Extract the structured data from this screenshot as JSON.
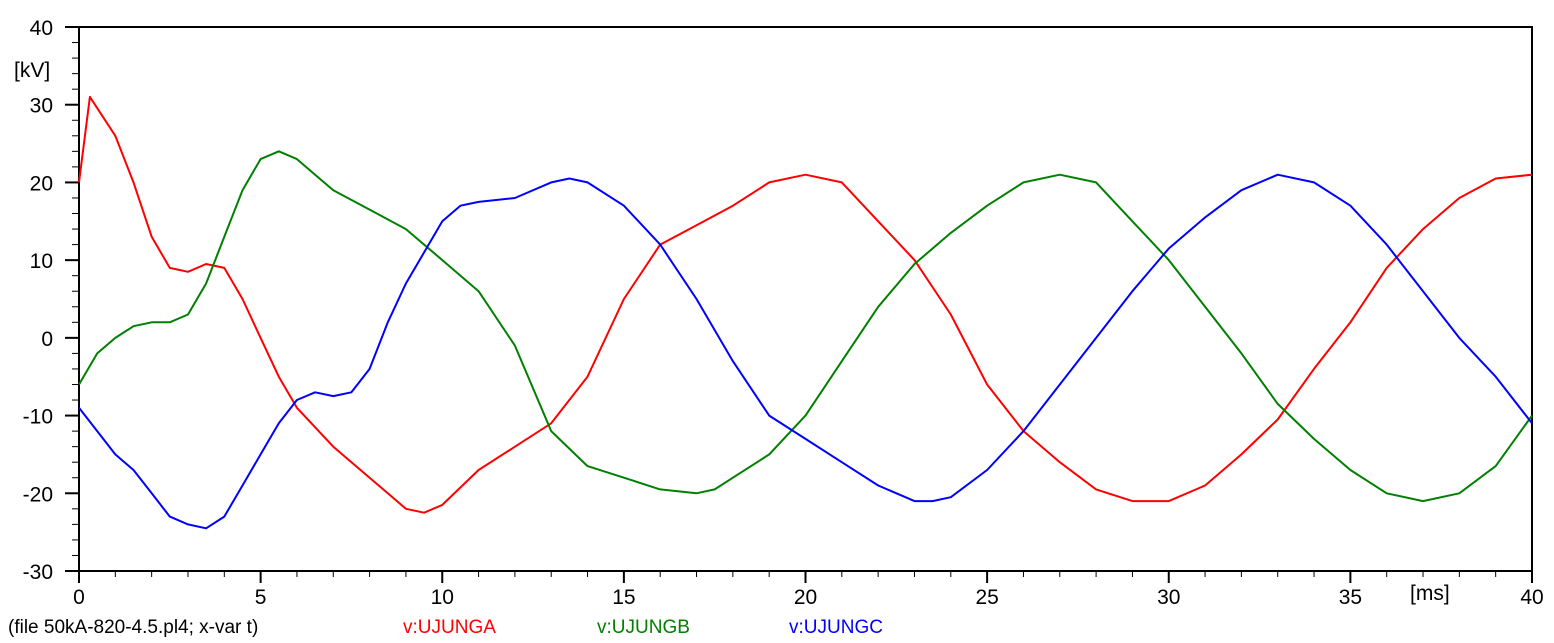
{
  "chart_data": {
    "type": "line",
    "xlabel": "[ms]",
    "ylabel": "[kV]",
    "xlim": [
      0,
      40
    ],
    "ylim": [
      -30,
      40
    ],
    "xticks": [
      0,
      5,
      10,
      15,
      20,
      25,
      30,
      35,
      40
    ],
    "yticks": [
      -30,
      -20,
      -10,
      0,
      10,
      20,
      30,
      40
    ],
    "grid": false,
    "footer": "(file 50kA-820-4.5.pl4; x-var t)",
    "series": [
      {
        "name": "v:UJUNGA",
        "color": "#ff0000",
        "x": [
          0,
          0.3,
          1,
          1.5,
          2,
          2.5,
          3,
          3.5,
          4,
          4.5,
          5,
          5.5,
          6,
          7,
          8,
          9,
          9.5,
          10,
          11,
          12,
          13,
          14,
          15,
          16,
          17,
          18,
          19,
          20,
          21,
          22,
          23,
          24,
          25,
          26,
          27,
          28,
          29,
          30,
          31,
          32,
          33,
          34,
          35,
          36,
          37,
          38,
          39,
          40
        ],
        "y": [
          20,
          31,
          26,
          20,
          13,
          9,
          8.5,
          9.5,
          9,
          5,
          0,
          -5,
          -9,
          -14,
          -18,
          -22,
          -22.5,
          -21.5,
          -17,
          -14,
          -11,
          -5,
          5,
          12,
          14.5,
          17,
          20,
          21,
          20,
          15,
          10,
          3,
          -6,
          -12,
          -16,
          -19.5,
          -21,
          -21,
          -19,
          -15,
          -10.5,
          -4,
          2,
          9,
          14,
          18,
          20.5,
          21
        ]
      },
      {
        "name": "v:UJUNGB",
        "color": "#008000",
        "x": [
          0,
          0.5,
          1,
          1.5,
          2,
          2.5,
          3,
          3.5,
          4,
          4.5,
          5,
          5.5,
          6,
          6.5,
          7,
          8,
          9,
          10,
          11,
          12,
          13,
          14,
          15,
          16,
          17,
          17.5,
          18,
          19,
          20,
          21,
          22,
          23,
          24,
          25,
          26,
          27,
          28,
          29,
          30,
          31,
          32,
          33,
          34,
          35,
          36,
          37,
          38,
          39,
          40
        ],
        "y": [
          -6,
          -2,
          0,
          1.5,
          2,
          2,
          3,
          7,
          13,
          19,
          23,
          24,
          23,
          21,
          19,
          16.5,
          14,
          10,
          6,
          -1,
          -12,
          -16.5,
          -18,
          -19.5,
          -20,
          -19.5,
          -18,
          -15,
          -10,
          -3,
          4,
          9.5,
          13.5,
          17,
          20,
          21,
          20,
          15,
          10,
          4,
          -2,
          -8.5,
          -13,
          -17,
          -20,
          -21,
          -20,
          -16.5,
          -10
        ]
      },
      {
        "name": "v:UJUNGC",
        "color": "#0000ff",
        "x": [
          0,
          0.5,
          1,
          1.5,
          2,
          2.5,
          3,
          3.5,
          4,
          4.5,
          5,
          5.5,
          6,
          6.5,
          7,
          7.5,
          8,
          8.5,
          9,
          9.5,
          10,
          10.5,
          11,
          12,
          13,
          13.5,
          14,
          15,
          16,
          17,
          18,
          19,
          20,
          21,
          22,
          23,
          23.5,
          24,
          25,
          26,
          27,
          28,
          29,
          30,
          31,
          32,
          33,
          34,
          35,
          36,
          37,
          38,
          39,
          40
        ],
        "y": [
          -9,
          -12,
          -15,
          -17,
          -20,
          -23,
          -24,
          -24.5,
          -23,
          -19,
          -15,
          -11,
          -8,
          -7,
          -7.5,
          -7,
          -4,
          2,
          7,
          11,
          15,
          17,
          17.5,
          18,
          20,
          20.5,
          20,
          17,
          12,
          5,
          -3,
          -10,
          -13,
          -16,
          -19,
          -21,
          -21,
          -20.5,
          -17,
          -12,
          -6,
          0,
          6,
          11.5,
          15.5,
          19,
          21,
          20,
          17,
          12,
          6,
          0,
          -5,
          -11
        ]
      }
    ]
  }
}
